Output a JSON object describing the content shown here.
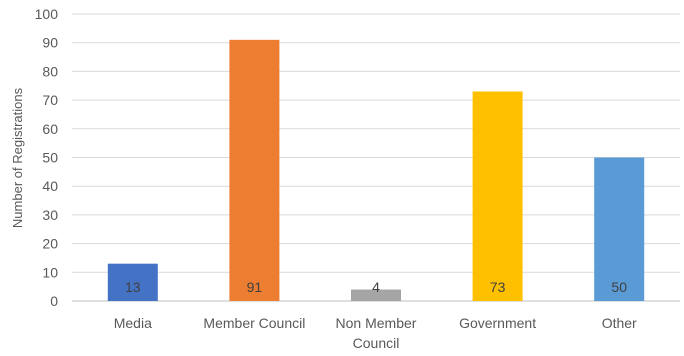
{
  "chart_data": {
    "type": "bar",
    "categories": [
      "Media",
      "Member Council",
      "Non Member Council",
      "Government",
      "Other"
    ],
    "category_lines": [
      [
        "Media"
      ],
      [
        "Member Council"
      ],
      [
        "Non Member",
        "Council"
      ],
      [
        "Government"
      ],
      [
        "Other"
      ]
    ],
    "values": [
      13,
      91,
      4,
      73,
      50
    ],
    "colors": [
      "#4472c4",
      "#ed7d31",
      "#a5a5a5",
      "#ffc000",
      "#5b9bd5"
    ],
    "title": "",
    "xlabel": "",
    "ylabel": "Number of Registrations",
    "ylim": [
      0,
      100
    ],
    "yticks": [
      0,
      10,
      20,
      30,
      40,
      50,
      60,
      70,
      80,
      90,
      100
    ],
    "grid": true,
    "legend": "none"
  }
}
